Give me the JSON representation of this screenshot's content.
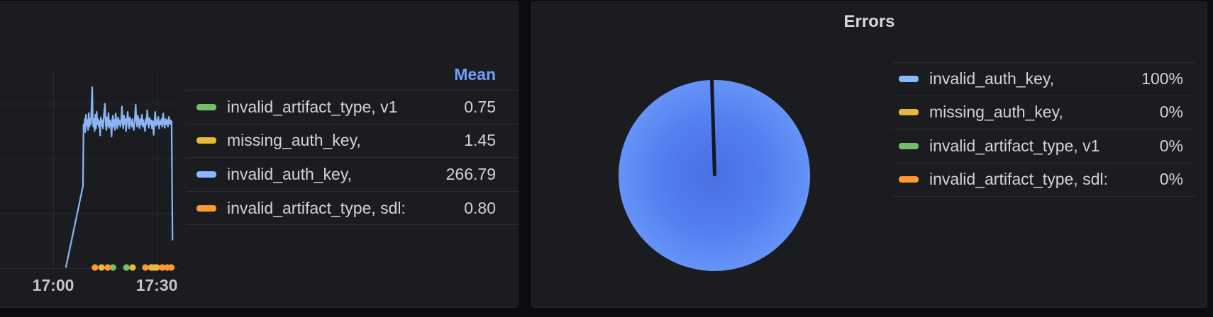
{
  "left_panel": {
    "legend": {
      "header": "Mean",
      "rows": [
        {
          "label": "invalid_artifact_type, v1",
          "value": "0.75",
          "color": "#73BF69"
        },
        {
          "label": "missing_auth_key,",
          "value": "1.45",
          "color": "#EAB839"
        },
        {
          "label": "invalid_auth_key,",
          "value": "266.79",
          "color": "#8AB8FF"
        },
        {
          "label": "invalid_artifact_type, sdl:",
          "value": "0.80",
          "color": "#FF9830"
        }
      ]
    },
    "x_ticks": [
      {
        "label": "17:00",
        "t": 0
      },
      {
        "label": "17:30",
        "t": 30
      }
    ]
  },
  "right_panel": {
    "title": "Errors",
    "legend": {
      "rows": [
        {
          "label": "invalid_auth_key,",
          "value": "100%",
          "color": "#8AB8FF"
        },
        {
          "label": "missing_auth_key,",
          "value": "0%",
          "color": "#EAB839"
        },
        {
          "label": "invalid_artifact_type, v1",
          "value": "0%",
          "color": "#73BF69"
        },
        {
          "label": "invalid_artifact_type, sdl:",
          "value": "0%",
          "color": "#FF9830"
        }
      ]
    },
    "pie": {
      "gradient_center": "#4a6fe4",
      "gradient_mid": "#527eef",
      "gradient_edge": "#78a8ff",
      "slit_color": "#15181d"
    }
  },
  "colors": {
    "panel_bg": "#1a1c20",
    "page_bg": "#0b0c0f",
    "gridline": "rgba(204,204,220,0.08)",
    "axis_text": "#c3c4cc",
    "line_series": "#8ab4f2",
    "dot_green": "#73BF69",
    "dot_yellow": "#EAB839",
    "dot_orange": "#FF9830"
  },
  "chart_data": [
    {
      "type": "line",
      "title": "",
      "xlabel": "",
      "ylabel": "",
      "x_axis": {
        "tick_labels": [
          "17:00",
          "17:30"
        ],
        "tick_minutes": [
          0,
          30
        ],
        "range_minutes": [
          -15.4,
          36.6
        ]
      },
      "y_axis": {
        "gridline_values": [
          0,
          100,
          200,
          300
        ],
        "range": [
          0,
          363
        ],
        "labels_visible": false
      },
      "grid": true,
      "legend_position": "right-table",
      "series": [
        {
          "name": "invalid_auth_key,",
          "color": "#8AB8FF",
          "mean": 266.79,
          "render": "line",
          "points": [
            [
              3.7,
              2
            ],
            [
              8.63,
              150
            ],
            [
              8.8,
              262
            ],
            [
              9.0,
              255
            ],
            [
              9.15,
              272
            ],
            [
              9.3,
              248
            ],
            [
              9.5,
              280
            ],
            [
              9.7,
              260
            ],
            [
              9.9,
              270
            ],
            [
              10.1,
              252
            ],
            [
              10.3,
              283
            ],
            [
              10.5,
              258
            ],
            [
              10.7,
              272
            ],
            [
              10.9,
              262
            ],
            [
              11.1,
              292
            ],
            [
              11.3,
              330
            ],
            [
              11.45,
              276
            ],
            [
              11.6,
              258
            ],
            [
              11.8,
              272
            ],
            [
              12.0,
              250
            ],
            [
              12.2,
              280
            ],
            [
              12.4,
              255
            ],
            [
              12.6,
              285
            ],
            [
              12.8,
              262
            ],
            [
              13.0,
              272
            ],
            [
              13.2,
              258
            ],
            [
              13.4,
              268
            ],
            [
              13.6,
              242
            ],
            [
              13.8,
              275
            ],
            [
              14.0,
              260
            ],
            [
              14.2,
              270
            ],
            [
              14.45,
              255
            ],
            [
              14.7,
              280
            ],
            [
              15.0,
              300
            ],
            [
              15.2,
              262
            ],
            [
              15.4,
              252
            ],
            [
              15.6,
              275
            ],
            [
              15.8,
              260
            ],
            [
              16.0,
              283
            ],
            [
              16.2,
              256
            ],
            [
              16.45,
              270
            ],
            [
              16.7,
              262
            ],
            [
              16.9,
              240
            ],
            [
              17.1,
              268
            ],
            [
              17.3,
              278
            ],
            [
              17.5,
              258
            ],
            [
              17.7,
              270
            ],
            [
              17.9,
              252
            ],
            [
              18.1,
              282
            ],
            [
              18.35,
              265
            ],
            [
              18.6,
              255
            ],
            [
              18.8,
              275
            ],
            [
              19.0,
              262
            ],
            [
              19.2,
              270
            ],
            [
              19.45,
              258
            ],
            [
              19.7,
              268
            ],
            [
              19.9,
              295
            ],
            [
              20.1,
              265
            ],
            [
              20.3,
              255
            ],
            [
              20.5,
              278
            ],
            [
              20.7,
              262
            ],
            [
              20.9,
              272
            ],
            [
              21.1,
              250
            ],
            [
              21.35,
              270
            ],
            [
              21.6,
              285
            ],
            [
              21.8,
              262
            ],
            [
              22.0,
              255
            ],
            [
              22.2,
              275
            ],
            [
              22.45,
              265
            ],
            [
              22.7,
              258
            ],
            [
              22.9,
              272
            ],
            [
              23.1,
              262
            ],
            [
              23.35,
              252
            ],
            [
              23.6,
              270
            ],
            [
              23.9,
              298
            ],
            [
              24.1,
              268
            ],
            [
              24.3,
              258
            ],
            [
              24.55,
              278
            ],
            [
              24.8,
              265
            ],
            [
              25.0,
              255
            ],
            [
              25.2,
              272
            ],
            [
              25.45,
              262
            ],
            [
              25.7,
              280
            ],
            [
              25.9,
              258
            ],
            [
              26.1,
              270
            ],
            [
              26.35,
              262
            ],
            [
              26.6,
              250
            ],
            [
              26.8,
              272
            ],
            [
              27.0,
              262
            ],
            [
              27.25,
              288
            ],
            [
              27.5,
              266
            ],
            [
              27.7,
              256
            ],
            [
              27.9,
              274
            ],
            [
              28.15,
              262
            ],
            [
              28.4,
              270
            ],
            [
              28.6,
              255
            ],
            [
              28.85,
              268
            ],
            [
              29.1,
              243
            ],
            [
              29.3,
              265
            ],
            [
              29.55,
              285
            ],
            [
              29.8,
              260
            ],
            [
              30.0,
              270
            ],
            [
              30.2,
              262
            ],
            [
              30.45,
              276
            ],
            [
              30.7,
              255
            ],
            [
              30.9,
              268
            ],
            [
              31.15,
              262
            ],
            [
              31.4,
              272
            ],
            [
              31.6,
              258
            ],
            [
              31.85,
              282
            ],
            [
              32.1,
              265
            ],
            [
              32.3,
              256
            ],
            [
              32.55,
              272
            ],
            [
              32.8,
              262
            ],
            [
              33.0,
              270
            ],
            [
              33.25,
              258
            ],
            [
              33.5,
              276
            ],
            [
              33.7,
              264
            ],
            [
              33.9,
              270
            ],
            [
              34.1,
              262
            ],
            [
              34.3,
              268
            ],
            [
              34.55,
              52
            ]
          ]
        },
        {
          "name": "invalid_artifact_type, v1",
          "color": "#73BF69",
          "mean": 0.75,
          "render": "points",
          "event_times_min": [
            17.3,
            21.2
          ]
        },
        {
          "name": "missing_auth_key,",
          "color": "#EAB839",
          "mean": 1.45,
          "render": "points",
          "event_times_min": [
            14.0,
            23.0,
            28.4,
            29.2,
            30.0
          ]
        },
        {
          "name": "invalid_artifact_type, sdl:",
          "color": "#FF9830",
          "mean": 0.8,
          "render": "points",
          "event_times_min": [
            12.1,
            15.8,
            26.7,
            31.6,
            33.0,
            34.2
          ]
        }
      ]
    },
    {
      "type": "pie",
      "title": "Errors",
      "slices": [
        {
          "label": "invalid_auth_key,",
          "pct": 100,
          "color": "#8AB8FF"
        },
        {
          "label": "missing_auth_key,",
          "pct": 0,
          "color": "#EAB839"
        },
        {
          "label": "invalid_artifact_type, v1",
          "pct": 0,
          "color": "#73BF69"
        },
        {
          "label": "invalid_artifact_type, sdl:",
          "pct": 0,
          "color": "#FF9830"
        }
      ],
      "legend_position": "right-table"
    }
  ]
}
